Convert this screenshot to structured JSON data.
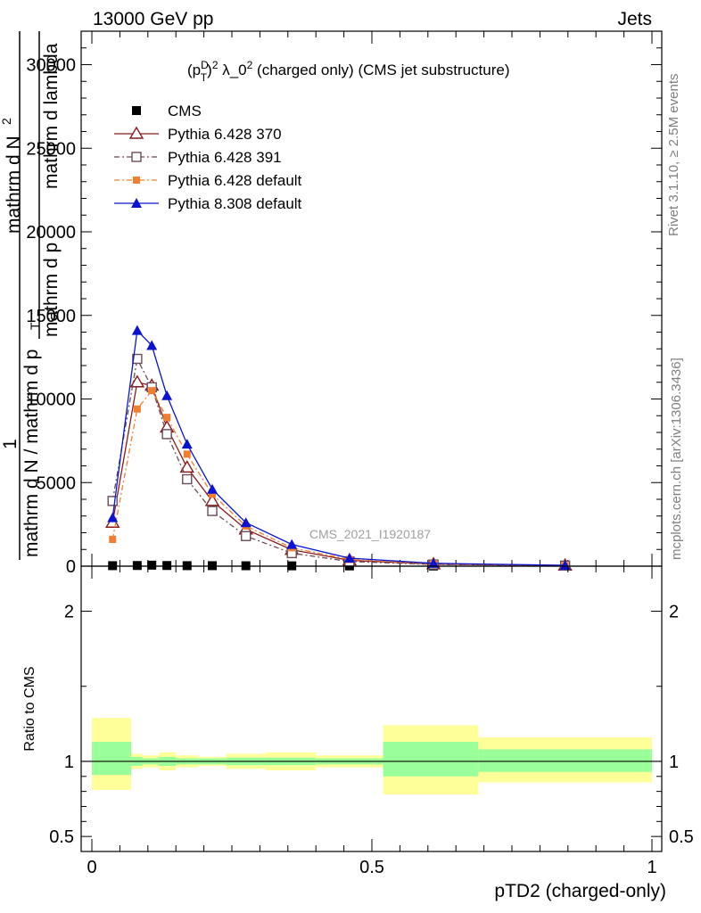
{
  "header": {
    "left": "13000 GeV pp",
    "right": "Jets"
  },
  "side": {
    "rivet": "Rivet 3.1.10, ≥ 2.5M events",
    "mcplots": "mcplots.cern.ch [arXiv:1306.3436]"
  },
  "watermark": "CMS_2021_I1920187",
  "colors": {
    "cms": "#000000",
    "p370": "#8b1a1a",
    "p391": "#6b4c5a",
    "p6def": "#f08030",
    "p8def": "#0a14d0",
    "band_inner": "#99ff99",
    "band_outer": "#ffff99"
  },
  "chart_data": [
    {
      "type": "line",
      "title": "(p_T^D)^2 λ_0^2 (charged only) (CMS jet substructure)",
      "title_parts": {
        "p": "(p",
        "sup1": "D",
        "sub1": "T",
        "close": ")",
        "sup2": "2",
        "lam": " λ_0",
        "sup3": "2",
        "rest": " (charged only) (CMS jet substructure)"
      },
      "ylabel_numerator": "mathrm d²N",
      "ylabel_numerator_sup": "2",
      "ylabel_numerator_text": "mathrm d N",
      "ylabel_denominator": "mathrm d p_T mathrm d lambda",
      "ylabel_denominator_lines": [
        "mathrm d p",
        "mathrm d lambda"
      ],
      "ylabel_prefix": "1",
      "ylabel_prefix_denom": "mathrm d N / mathrm d p",
      "ylabel_prefix_sub": "T",
      "xlim": [
        0,
        1
      ],
      "ylim": [
        0,
        32000
      ],
      "yticks": [
        0,
        5000,
        10000,
        15000,
        20000,
        25000,
        30000
      ],
      "ytick_labels": [
        "0",
        "5000",
        "10000",
        "15000",
        "20000",
        "25000",
        "30000"
      ],
      "legend_position": "top-left",
      "series": [
        {
          "name": "CMS",
          "style": "cms",
          "x": [
            0.037,
            0.081,
            0.107,
            0.134,
            0.17,
            0.215,
            0.275,
            0.357,
            0.46,
            0.61,
            0.845
          ],
          "y": [
            30,
            40,
            60,
            40,
            30,
            30,
            25,
            20,
            15,
            10,
            5
          ]
        },
        {
          "name": "Pythia 6.428 370",
          "style": "p370",
          "x": [
            0.037,
            0.081,
            0.107,
            0.134,
            0.17,
            0.215,
            0.275,
            0.357,
            0.46,
            0.61,
            0.845
          ],
          "y": [
            2600,
            11000,
            10800,
            8300,
            5900,
            3900,
            2200,
            980,
            350,
            120,
            40
          ]
        },
        {
          "name": "Pythia 6.428 391",
          "style": "p391",
          "x": [
            0.037,
            0.081,
            0.107,
            0.134,
            0.17,
            0.215,
            0.275,
            0.357,
            0.46,
            0.61,
            0.845
          ],
          "y": [
            3900,
            12400,
            10700,
            7900,
            5200,
            3300,
            1800,
            780,
            280,
            100,
            35
          ]
        },
        {
          "name": "Pythia 6.428 default",
          "style": "p6def",
          "x": [
            0.037,
            0.081,
            0.107,
            0.134,
            0.17,
            0.215,
            0.275,
            0.357,
            0.46,
            0.61,
            0.845
          ],
          "y": [
            1600,
            9400,
            10500,
            8900,
            6700,
            4300,
            2400,
            1100,
            400,
            140,
            45
          ]
        },
        {
          "name": "Pythia 8.308 default",
          "style": "p8def",
          "x": [
            0.037,
            0.081,
            0.107,
            0.134,
            0.17,
            0.215,
            0.275,
            0.357,
            0.46,
            0.61,
            0.845
          ],
          "y": [
            2900,
            14100,
            13200,
            10200,
            7300,
            4600,
            2600,
            1300,
            480,
            170,
            50
          ]
        }
      ]
    },
    {
      "type": "area",
      "ylabel": "Ratio to CMS",
      "xlabel": "pTD2 (charged-only)",
      "xlim": [
        0,
        1
      ],
      "ylim": [
        0.4,
        2.3
      ],
      "xticks": [
        0,
        0.5,
        1
      ],
      "xtick_labels": [
        "0",
        "0.5",
        "1"
      ],
      "yticks": [
        0.5,
        1,
        2
      ],
      "ytick_labels": [
        "0.5",
        "1",
        "2"
      ],
      "reference_line": 1,
      "bins": [
        {
          "x0": 0.0,
          "x1": 0.07,
          "inner": [
            0.91,
            1.13
          ],
          "outer": [
            0.81,
            1.29
          ]
        },
        {
          "x0": 0.07,
          "x1": 0.09,
          "inner": [
            0.97,
            1.03
          ],
          "outer": [
            0.95,
            1.05
          ]
        },
        {
          "x0": 0.09,
          "x1": 0.12,
          "inner": [
            0.98,
            1.02
          ],
          "outer": [
            0.96,
            1.04
          ]
        },
        {
          "x0": 0.12,
          "x1": 0.15,
          "inner": [
            0.97,
            1.03
          ],
          "outer": [
            0.94,
            1.06
          ]
        },
        {
          "x0": 0.15,
          "x1": 0.19,
          "inner": [
            0.98,
            1.02
          ],
          "outer": [
            0.96,
            1.04
          ]
        },
        {
          "x0": 0.19,
          "x1": 0.24,
          "inner": [
            0.98,
            1.02
          ],
          "outer": [
            0.97,
            1.03
          ]
        },
        {
          "x0": 0.24,
          "x1": 0.31,
          "inner": [
            0.975,
            1.025
          ],
          "outer": [
            0.95,
            1.05
          ]
        },
        {
          "x0": 0.31,
          "x1": 0.4,
          "inner": [
            0.975,
            1.025
          ],
          "outer": [
            0.94,
            1.06
          ]
        },
        {
          "x0": 0.4,
          "x1": 0.52,
          "inner": [
            0.98,
            1.02
          ],
          "outer": [
            0.96,
            1.04
          ]
        },
        {
          "x0": 0.52,
          "x1": 0.69,
          "inner": [
            0.9,
            1.13
          ],
          "outer": [
            0.78,
            1.24
          ]
        },
        {
          "x0": 0.69,
          "x1": 1.0,
          "inner": [
            0.93,
            1.08
          ],
          "outer": [
            0.86,
            1.16
          ]
        }
      ]
    }
  ]
}
